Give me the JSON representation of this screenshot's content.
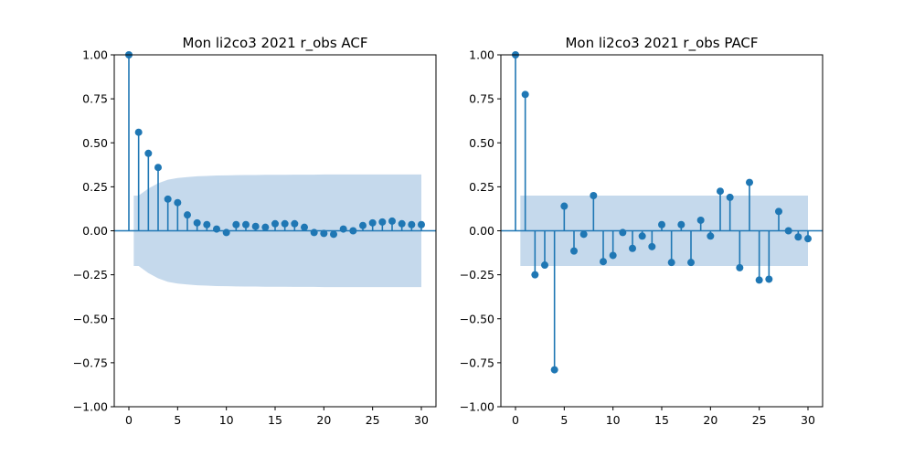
{
  "chart_data": [
    {
      "type": "stem",
      "title": "Mon li2co3 2021 r_obs ACF",
      "xlim": [
        -1.5,
        31.5
      ],
      "ylim": [
        -1.0,
        1.0
      ],
      "xticks": [
        0,
        5,
        10,
        15,
        20,
        25,
        30
      ],
      "yticks": [
        -1.0,
        -0.75,
        -0.5,
        -0.25,
        0.0,
        0.25,
        0.5,
        0.75,
        1.0
      ],
      "ytick_labels": [
        "−1.00",
        "−0.75",
        "−0.50",
        "−0.25",
        "0.00",
        "0.25",
        "0.50",
        "0.75",
        "1.00"
      ],
      "xtick_labels": [
        "0",
        "5",
        "10",
        "15",
        "20",
        "25",
        "30"
      ],
      "lags": [
        0,
        1,
        2,
        3,
        4,
        5,
        6,
        7,
        8,
        9,
        10,
        11,
        12,
        13,
        14,
        15,
        16,
        17,
        18,
        19,
        20,
        21,
        22,
        23,
        24,
        25,
        26,
        27,
        28,
        29,
        30
      ],
      "values": [
        1.0,
        0.56,
        0.44,
        0.36,
        0.18,
        0.16,
        0.09,
        0.045,
        0.035,
        0.01,
        -0.01,
        0.035,
        0.035,
        0.025,
        0.02,
        0.04,
        0.04,
        0.04,
        0.02,
        -0.01,
        -0.015,
        -0.02,
        0.01,
        0.0,
        0.03,
        0.045,
        0.05,
        0.055,
        0.04,
        0.035,
        0.035
      ],
      "confidence_band": [
        0.2,
        0.2,
        0.24,
        0.27,
        0.29,
        0.3,
        0.305,
        0.31,
        0.312,
        0.314,
        0.315,
        0.316,
        0.317,
        0.317,
        0.318,
        0.318,
        0.318,
        0.319,
        0.319,
        0.319,
        0.32,
        0.32,
        0.32,
        0.32,
        0.32,
        0.32,
        0.32,
        0.32,
        0.32,
        0.32,
        0.32
      ],
      "band_start": 0.5,
      "color": "#1f77b4",
      "band_color": "#c5d9ec"
    },
    {
      "type": "stem",
      "title": "Mon li2co3 2021 r_obs PACF",
      "xlim": [
        -1.5,
        31.5
      ],
      "ylim": [
        -1.0,
        1.0
      ],
      "xticks": [
        0,
        5,
        10,
        15,
        20,
        25,
        30
      ],
      "yticks": [
        -1.0,
        -0.75,
        -0.5,
        -0.25,
        0.0,
        0.25,
        0.5,
        0.75,
        1.0
      ],
      "ytick_labels": [
        "−1.00",
        "−0.75",
        "−0.50",
        "−0.25",
        "0.00",
        "0.25",
        "0.50",
        "0.75",
        "1.00"
      ],
      "xtick_labels": [
        "0",
        "5",
        "10",
        "15",
        "20",
        "25",
        "30"
      ],
      "lags": [
        0,
        1,
        2,
        3,
        4,
        5,
        6,
        7,
        8,
        9,
        10,
        11,
        12,
        13,
        14,
        15,
        16,
        17,
        18,
        19,
        20,
        21,
        22,
        23,
        24,
        25,
        26,
        27,
        28,
        29,
        30
      ],
      "values": [
        1.0,
        0.775,
        -0.25,
        -0.195,
        -0.79,
        0.14,
        -0.115,
        -0.02,
        0.2,
        -0.175,
        -0.14,
        -0.01,
        -0.1,
        -0.03,
        -0.09,
        0.035,
        -0.18,
        0.035,
        -0.18,
        0.06,
        -0.03,
        0.225,
        0.19,
        -0.21,
        0.275,
        -0.28,
        -0.275,
        0.11,
        0.0,
        -0.035,
        -0.045
      ],
      "confidence_band": [
        0.2,
        0.2,
        0.2,
        0.2,
        0.2,
        0.2,
        0.2,
        0.2,
        0.2,
        0.2,
        0.2,
        0.2,
        0.2,
        0.2,
        0.2,
        0.2,
        0.2,
        0.2,
        0.2,
        0.2,
        0.2,
        0.2,
        0.2,
        0.2,
        0.2,
        0.2,
        0.2,
        0.2,
        0.2,
        0.2,
        0.2
      ],
      "band_start": 0.5,
      "color": "#1f77b4",
      "band_color": "#c5d9ec"
    }
  ]
}
